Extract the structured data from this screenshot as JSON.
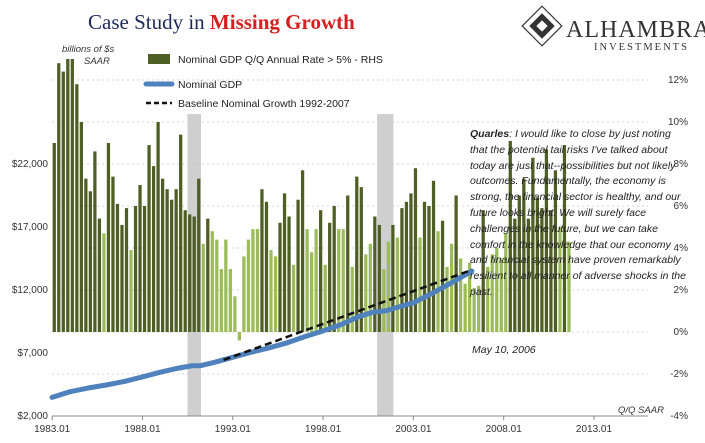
{
  "title": {
    "part1": "Case Study in ",
    "part2": "Missing Growth"
  },
  "logo": {
    "name": "ALHAMBRA",
    "sub": "INVESTMENTS"
  },
  "left_axis_unit": [
    "billions of $s",
    "SAAR"
  ],
  "right_axis_unit": "Q/Q SAAR",
  "quote": {
    "speaker": "Quarles",
    "text": ": I would like to close by just noting that the potential tail risks I've talked about today are just that--possibilities but not likely outcomes.   Fundamentally, the economy is strong, the financial sector is healthy, and our future looks bright.   We will surely face challenges in the future, but we can take comfort in the knowledge that our economy and financial system have proven remarkably resilient to all manner of adverse shocks in the past.",
    "date": "May 10, 2006"
  },
  "colors": {
    "bar_dark": "#4e5e24",
    "bar_light": "#9cbc5a",
    "gdp_line": "#4f81bd",
    "baseline": "#111111",
    "recession": "#cfcfcf",
    "grid": "#c8c8c8"
  },
  "chart_data": {
    "type": "bar",
    "x_range": [
      1983.0,
      2016.0
    ],
    "left_axis": {
      "range": [
        2000,
        32000
      ],
      "ticks": [
        2000,
        7000,
        12000,
        17000,
        22000
      ],
      "tick_labels": [
        "$2,000",
        "$7,000",
        "$12,000",
        "$17,000",
        "$22,000"
      ]
    },
    "right_axis": {
      "range": [
        -4,
        14
      ],
      "ticks": [
        -4,
        -2,
        0,
        2,
        4,
        6,
        8,
        10,
        12
      ],
      "tick_labels": [
        "-4%",
        "-2%",
        "0%",
        "2%",
        "4%",
        "6%",
        "8%",
        "10%",
        "12%"
      ]
    },
    "x_ticks": [
      1983.01,
      1988.01,
      1993.01,
      1998.01,
      2003.01,
      2008.01,
      2013.01
    ],
    "x_tick_labels": [
      "1983.01",
      "1988.01",
      "1993.01",
      "1998.01",
      "2003.01",
      "2008.01",
      "2013.01"
    ],
    "recessions": [
      [
        1990.5,
        1991.25
      ],
      [
        2001.0,
        2001.9
      ]
    ],
    "legend": [
      {
        "label": "Nominal GDP Q/Q Annual Rate > 5% - RHS",
        "kind": "bar"
      },
      {
        "label": "Nominal GDP",
        "kind": "line"
      },
      {
        "label": "Baseline Nominal Growth 1992-2007",
        "kind": "dashed"
      }
    ],
    "bars": {
      "start": 1983.0,
      "step": 0.25,
      "values": [
        9.0,
        12.8,
        12.4,
        13.0,
        13.0,
        11.8,
        10.0,
        7.3,
        6.7,
        8.6,
        5.4,
        4.7,
        9.0,
        7.4,
        6.1,
        5.1,
        5.9,
        3.9,
        6.0,
        7.0,
        6.0,
        8.9,
        7.9,
        10.0,
        7.3,
        6.8,
        6.3,
        6.8,
        9.4,
        5.8,
        5.6,
        5.5,
        7.3,
        4.2,
        5.4,
        4.8,
        4.4,
        3.0,
        4.4,
        3.0,
        1.7,
        -0.4,
        3.6,
        4.4,
        4.9,
        4.9,
        6.8,
        6.2,
        3.9,
        3.6,
        5.2,
        6.6,
        5.5,
        3.2,
        6.3,
        7.7,
        4.9,
        3.8,
        4.9,
        5.8,
        3.2,
        5.2,
        6.0,
        4.9,
        4.9,
        6.5,
        3.1,
        7.4,
        6.9,
        3.7,
        4.2,
        5.5,
        5.1,
        3.0,
        4.3,
        5.1,
        4.5,
        5.9,
        6.2,
        6.6,
        7.8,
        4.5,
        6.2,
        6.0,
        7.2,
        4.8,
        5.3,
        3.1,
        4.2,
        6.5,
        3.5,
        2.3,
        3.3,
        2.1,
        2.2,
        5.8,
        3.1,
        3.7,
        4.0,
        3.5,
        4.7,
        9.1,
        5.4,
        6.5,
        7.3,
        5.4,
        8.3,
        6.4,
        5.9,
        8.7,
        5.8,
        7.7,
        5.0,
        8.9,
        4.3
      ]
    },
    "gdp_series": [
      [
        1983.0,
        3480
      ],
      [
        1984.0,
        3930
      ],
      [
        1985.0,
        4220
      ],
      [
        1986.0,
        4460
      ],
      [
        1987.0,
        4740
      ],
      [
        1988.0,
        5100
      ],
      [
        1989.0,
        5480
      ],
      [
        1990.0,
        5800
      ],
      [
        1990.75,
        5990
      ],
      [
        1991.25,
        6000
      ],
      [
        1992.0,
        6260
      ],
      [
        1993.0,
        6660
      ],
      [
        1994.0,
        7050
      ],
      [
        1995.0,
        7400
      ],
      [
        1996.0,
        7800
      ],
      [
        1997.0,
        8300
      ],
      [
        1998.0,
        8750
      ],
      [
        1999.0,
        9250
      ],
      [
        2000.0,
        9900
      ],
      [
        2000.75,
        10230
      ],
      [
        2001.5,
        10350
      ],
      [
        2002.0,
        10570
      ],
      [
        2003.0,
        10980
      ],
      [
        2004.0,
        11700
      ],
      [
        2005.0,
        12480
      ],
      [
        2006.25,
        13500
      ]
    ],
    "baseline_series": [
      [
        1992.5,
        6450
      ],
      [
        2006.25,
        13600
      ]
    ]
  }
}
